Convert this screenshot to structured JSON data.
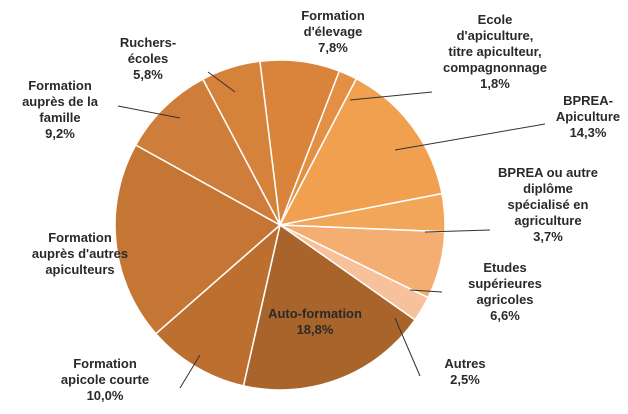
{
  "chart_data": {
    "type": "pie",
    "categories": [
      "Formation\nd'élevage",
      "Ecole\nd'apiculture,\ntitre apiculteur,\ncompagnonnage",
      "BPREA-\nApiculture",
      "BPREA ou autre\ndiplôme\nspécialisé en\nagriculture",
      "Etudes\nsupérieures\nagricoles",
      "Autres",
      "Auto-formation",
      "Formation\napicole courte",
      "Formation\nauprès d'autres\napiculteurs",
      "Formation\nauprès de la\nfamille",
      "Ruchers-\nécoles"
    ],
    "values": [
      7.8,
      1.8,
      14.3,
      3.7,
      6.6,
      2.5,
      18.8,
      10.0,
      19.5,
      9.2,
      5.8
    ],
    "value_labels": [
      "7,8%",
      "1,8%",
      "14,3%",
      "3,7%",
      "6,6%",
      "2,5%",
      "18,8%",
      "10,0%",
      null,
      "9,2%",
      "5,8%"
    ],
    "colors": [
      "#d9843a",
      "#e38f44",
      "#f0a04f",
      "#f2a65a",
      "#f5ae72",
      "#f7c19c",
      "#a8642a",
      "#bd6f30",
      "#c57634",
      "#cf7d3a",
      "#d5823b"
    ]
  }
}
